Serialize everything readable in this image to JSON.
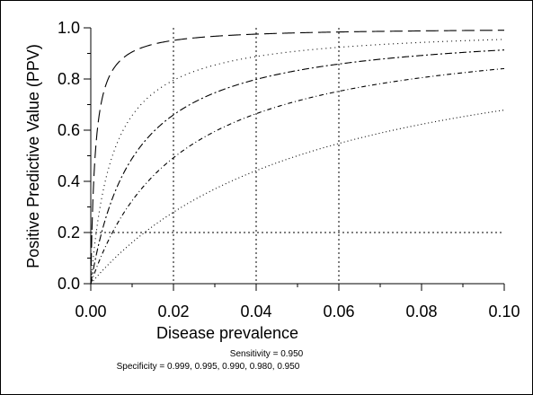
{
  "chart_data": {
    "type": "line",
    "xlabel": "Disease prevalence",
    "ylabel": "Positive Predictive Value (PPV)",
    "xlim": [
      0,
      0.1
    ],
    "ylim": [
      0,
      1
    ],
    "x_ticks": [
      0,
      0.02,
      0.04,
      0.06,
      0.08,
      0.1
    ],
    "x_tick_labels": [
      "0.00",
      "0.02",
      "0.04",
      "0.06",
      "0.08",
      "0.10"
    ],
    "y_ticks": [
      0,
      0.2,
      0.4,
      0.6,
      0.8,
      1.0
    ],
    "y_tick_labels": [
      "0.0",
      "0.2",
      "0.4",
      "0.6",
      "0.8",
      "1.0"
    ],
    "vertical_gridlines_x": [
      0.02,
      0.04,
      0.06
    ],
    "horizontal_gridlines_y": [
      0.2
    ],
    "sensitivity": 0.95,
    "specificities": [
      0.999,
      0.995,
      0.99,
      0.98,
      0.95
    ],
    "x": [
      0,
      0.005,
      0.01,
      0.02,
      0.03,
      0.04,
      0.05,
      0.06,
      0.07,
      0.08,
      0.09,
      0.1
    ],
    "series": [
      {
        "specificity": 0.999,
        "values": [
          0,
          0.827,
          0.906,
          0.951,
          0.967,
          0.975,
          0.98,
          0.984,
          0.986,
          0.988,
          0.99,
          0.991
        ]
      },
      {
        "specificity": 0.995,
        "values": [
          0,
          0.488,
          0.655,
          0.795,
          0.855,
          0.888,
          0.909,
          0.924,
          0.934,
          0.943,
          0.95,
          0.955
        ]
      },
      {
        "specificity": 0.99,
        "values": [
          0,
          0.323,
          0.49,
          0.66,
          0.746,
          0.798,
          0.833,
          0.858,
          0.878,
          0.892,
          0.904,
          0.913
        ]
      },
      {
        "specificity": 0.98,
        "values": [
          0,
          0.193,
          0.324,
          0.492,
          0.595,
          0.664,
          0.714,
          0.752,
          0.782,
          0.805,
          0.825,
          0.841
        ]
      },
      {
        "specificity": 0.95,
        "values": [
          0,
          0.087,
          0.161,
          0.279,
          0.37,
          0.442,
          0.5,
          0.548,
          0.588,
          0.623,
          0.653,
          0.679
        ]
      }
    ],
    "grid": "dotted",
    "legend": "none"
  },
  "notes": {
    "sensitivity_text": "Sensitivity = 0.950",
    "specificity_text": "Specificity = 0.999, 0.995, 0.990, 0.980, 0.950"
  },
  "colors": {
    "line": "#000000",
    "background": "#ffffff",
    "grid": "#000000"
  }
}
